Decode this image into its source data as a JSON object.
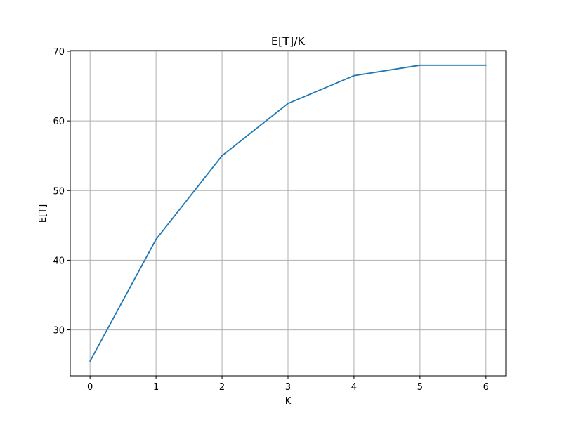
{
  "chart_data": {
    "type": "line",
    "title": "E[T]/K",
    "xlabel": "K",
    "ylabel": "E[T]",
    "x": [
      0,
      1,
      2,
      3,
      4,
      5,
      6
    ],
    "series": [
      {
        "values": [
          25.5,
          43,
          55,
          62.5,
          66.5,
          68,
          68
        ],
        "color": "#1f77b4"
      }
    ],
    "xlim": [
      -0.3,
      6.3
    ],
    "ylim": [
      23.4,
      70.1
    ],
    "xticks": [
      0,
      1,
      2,
      3,
      4,
      5,
      6
    ],
    "yticks": [
      30,
      40,
      50,
      60,
      70
    ],
    "grid": true,
    "legend": "none"
  }
}
